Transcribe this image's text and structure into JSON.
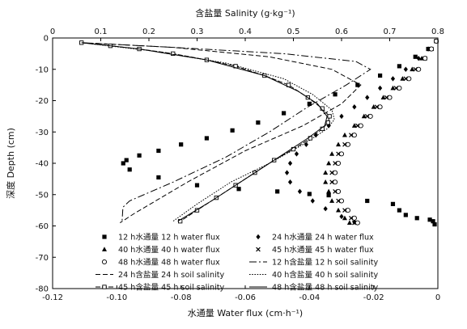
{
  "chart_data": {
    "type": "scatter",
    "x_bottom": {
      "label": "水通量 Water flux (cm·h⁻¹)",
      "range": [
        -0.12,
        0
      ],
      "ticks": [
        "-0.12",
        "-0.10",
        "-0.08",
        "-0.06",
        "-0.04",
        "-0.02",
        "0"
      ],
      "tick_values": [
        -0.12,
        -0.1,
        -0.08,
        -0.06,
        -0.04,
        -0.02,
        0
      ]
    },
    "x_top": {
      "label": "含盐量 Salinity (g·kg⁻¹)",
      "range": [
        0,
        0.8
      ],
      "ticks": [
        "0",
        "0.1",
        "0.2",
        "0.3",
        "0.4",
        "0.5",
        "0.6",
        "0.7",
        "0.8"
      ],
      "tick_values": [
        0,
        0.1,
        0.2,
        0.3,
        0.4,
        0.5,
        0.6,
        0.7,
        0.8
      ]
    },
    "y": {
      "label": "深度 Depth (cm)",
      "range": [
        -80,
        0
      ],
      "ticks": [
        "0",
        "-10",
        "-20",
        "-30",
        "-40",
        "-50",
        "-60",
        "-70",
        "-80"
      ],
      "tick_values": [
        0,
        -10,
        -20,
        -30,
        -40,
        -50,
        -60,
        -70,
        -80
      ]
    },
    "legend_position": "lower-center",
    "series": [
      {
        "name": "12 h水通量 12 h water flux",
        "axis": "bottom",
        "marker": "square",
        "points": [
          [
            -0.0005,
            -1
          ],
          [
            -0.003,
            -3.5
          ],
          [
            -0.007,
            -6
          ],
          [
            -0.012,
            -9
          ],
          [
            -0.018,
            -12
          ],
          [
            -0.025,
            -15
          ],
          [
            -0.032,
            -18
          ],
          [
            -0.04,
            -21
          ],
          [
            -0.048,
            -24
          ],
          [
            -0.056,
            -27
          ],
          [
            -0.064,
            -29.5
          ],
          [
            -0.072,
            -32
          ],
          [
            -0.08,
            -34
          ],
          [
            -0.087,
            -36
          ],
          [
            -0.093,
            -37.5
          ],
          [
            -0.097,
            -39
          ],
          [
            -0.098,
            -40
          ],
          [
            -0.096,
            -42
          ],
          [
            -0.087,
            -44.5
          ],
          [
            -0.075,
            -47
          ],
          [
            -0.062,
            -48.2
          ],
          [
            -0.05,
            -49
          ],
          [
            -0.04,
            -49.8
          ],
          [
            -0.034,
            -50.2
          ],
          [
            -0.022,
            -52
          ],
          [
            -0.014,
            -53
          ],
          [
            -0.012,
            -55
          ],
          [
            -0.01,
            -56.5
          ],
          [
            -0.0065,
            -57.5
          ],
          [
            -0.0025,
            -58
          ],
          [
            -0.0015,
            -58.5
          ],
          [
            -0.001,
            -59.5
          ]
        ]
      },
      {
        "name": "24 h水通量 24 h water flux",
        "axis": "bottom",
        "marker": "diamond",
        "points": [
          [
            -0.0005,
            -1
          ],
          [
            -0.003,
            -3.5
          ],
          [
            -0.006,
            -6.5
          ],
          [
            -0.01,
            -10
          ],
          [
            -0.014,
            -13
          ],
          [
            -0.018,
            -16
          ],
          [
            -0.022,
            -19
          ],
          [
            -0.026,
            -22
          ],
          [
            -0.03,
            -25
          ],
          [
            -0.034,
            -28
          ],
          [
            -0.038,
            -31
          ],
          [
            -0.041,
            -34
          ],
          [
            -0.044,
            -37
          ],
          [
            -0.046,
            -40
          ],
          [
            -0.047,
            -43
          ],
          [
            -0.046,
            -46
          ],
          [
            -0.043,
            -49
          ],
          [
            -0.039,
            -52
          ],
          [
            -0.035,
            -54.5
          ],
          [
            -0.03,
            -57
          ],
          [
            -0.026,
            -58.8
          ]
        ]
      },
      {
        "name": "40 h水通量 40 h water flux",
        "axis": "bottom",
        "marker": "triangle",
        "points": [
          [
            -0.0005,
            -1
          ],
          [
            -0.002,
            -3.5
          ],
          [
            -0.005,
            -6.5
          ],
          [
            -0.008,
            -10
          ],
          [
            -0.011,
            -13
          ],
          [
            -0.014,
            -16
          ],
          [
            -0.017,
            -19
          ],
          [
            -0.02,
            -22
          ],
          [
            -0.023,
            -25
          ],
          [
            -0.026,
            -28
          ],
          [
            -0.029,
            -31
          ],
          [
            -0.031,
            -34
          ],
          [
            -0.033,
            -37
          ],
          [
            -0.034,
            -40
          ],
          [
            -0.035,
            -43
          ],
          [
            -0.035,
            -46
          ],
          [
            -0.034,
            -49
          ],
          [
            -0.033,
            -52
          ],
          [
            -0.031,
            -55
          ],
          [
            -0.029,
            -57.5
          ],
          [
            -0.0275,
            -59
          ]
        ]
      },
      {
        "name": "45 h水通量 45 h water flux",
        "axis": "bottom",
        "marker": "cross",
        "points": [
          [
            -0.0005,
            -1
          ],
          [
            -0.002,
            -3.5
          ],
          [
            -0.004,
            -6.5
          ],
          [
            -0.007,
            -10
          ],
          [
            -0.01,
            -13
          ],
          [
            -0.013,
            -16
          ],
          [
            -0.016,
            -19
          ],
          [
            -0.019,
            -22
          ],
          [
            -0.022,
            -25
          ],
          [
            -0.025,
            -28
          ],
          [
            -0.027,
            -31
          ],
          [
            -0.029,
            -34
          ],
          [
            -0.031,
            -37
          ],
          [
            -0.032,
            -40
          ],
          [
            -0.033,
            -43
          ],
          [
            -0.033,
            -46
          ],
          [
            -0.032,
            -49
          ],
          [
            -0.031,
            -52
          ],
          [
            -0.029,
            -55
          ],
          [
            -0.027,
            -57.5
          ],
          [
            -0.026,
            -59
          ]
        ]
      },
      {
        "name": "48 h水通量 48 h water flux",
        "axis": "bottom",
        "marker": "circle",
        "points": [
          [
            -0.0005,
            -1
          ],
          [
            -0.002,
            -3.5
          ],
          [
            -0.004,
            -6.5
          ],
          [
            -0.006,
            -10
          ],
          [
            -0.009,
            -13
          ],
          [
            -0.012,
            -16
          ],
          [
            -0.015,
            -19
          ],
          [
            -0.018,
            -22
          ],
          [
            -0.021,
            -25
          ],
          [
            -0.024,
            -28
          ],
          [
            -0.026,
            -31
          ],
          [
            -0.028,
            -34
          ],
          [
            -0.03,
            -37
          ],
          [
            -0.031,
            -40
          ],
          [
            -0.032,
            -43
          ],
          [
            -0.032,
            -46
          ],
          [
            -0.031,
            -49
          ],
          [
            -0.03,
            -52
          ],
          [
            -0.028,
            -55
          ],
          [
            -0.026,
            -57.5
          ],
          [
            -0.025,
            -59
          ]
        ]
      },
      {
        "name": "12 h含盐量 12 h soil salinity",
        "axis": "top",
        "dash": "9 3 2 3",
        "marker": "none",
        "points": [
          [
            0.06,
            -1.5
          ],
          [
            0.25,
            -3
          ],
          [
            0.48,
            -5
          ],
          [
            0.63,
            -7.5
          ],
          [
            0.66,
            -10
          ],
          [
            0.61,
            -15
          ],
          [
            0.53,
            -22
          ],
          [
            0.45,
            -30
          ],
          [
            0.36,
            -38
          ],
          [
            0.25,
            -46
          ],
          [
            0.16,
            -52
          ],
          [
            0.146,
            -54
          ],
          [
            0.144,
            -59
          ]
        ]
      },
      {
        "name": "24 h含盐量 24 h soil salinity",
        "axis": "top",
        "dash": "6 3",
        "marker": "none",
        "points": [
          [
            0.06,
            -1.5
          ],
          [
            0.25,
            -3
          ],
          [
            0.45,
            -6
          ],
          [
            0.58,
            -10
          ],
          [
            0.64,
            -15
          ],
          [
            0.6,
            -21
          ],
          [
            0.52,
            -28
          ],
          [
            0.4,
            -36
          ],
          [
            0.28,
            -46
          ],
          [
            0.17,
            -56
          ],
          [
            0.14,
            -59
          ]
        ]
      },
      {
        "name": "40 h含盐量 40 h soil salinity",
        "axis": "top",
        "dash": "1.6 1.6",
        "marker": "none",
        "points": [
          [
            0.06,
            -1.5
          ],
          [
            0.2,
            -4
          ],
          [
            0.36,
            -8
          ],
          [
            0.48,
            -13
          ],
          [
            0.54,
            -18
          ],
          [
            0.58,
            -23
          ],
          [
            0.585,
            -26
          ],
          [
            0.57,
            -29
          ],
          [
            0.52,
            -34
          ],
          [
            0.45,
            -40
          ],
          [
            0.37,
            -46
          ],
          [
            0.3,
            -53
          ],
          [
            0.25,
            -58.5
          ]
        ]
      },
      {
        "name": "45 h含盐量 45 h soil salinity",
        "axis": "top",
        "dash": "6 2",
        "marker": "square-open",
        "points": [
          [
            0.06,
            -1.5
          ],
          [
            0.12,
            -2.5
          ],
          [
            0.18,
            -3.5
          ],
          [
            0.25,
            -5
          ],
          [
            0.32,
            -7
          ],
          [
            0.38,
            -9
          ],
          [
            0.44,
            -12
          ],
          [
            0.49,
            -15
          ],
          [
            0.53,
            -19
          ],
          [
            0.56,
            -22.5
          ],
          [
            0.575,
            -25
          ],
          [
            0.572,
            -27
          ],
          [
            0.56,
            -29
          ],
          [
            0.535,
            -32
          ],
          [
            0.5,
            -35.5
          ],
          [
            0.46,
            -39
          ],
          [
            0.42,
            -43
          ],
          [
            0.38,
            -47
          ],
          [
            0.34,
            -51
          ],
          [
            0.3,
            -55
          ],
          [
            0.265,
            -58.5
          ]
        ]
      },
      {
        "name": "48 h含盐量 48 h soil salinity",
        "axis": "top",
        "dash": "",
        "marker": "none",
        "points": [
          [
            0.06,
            -1.5
          ],
          [
            0.18,
            -3.5
          ],
          [
            0.32,
            -7
          ],
          [
            0.44,
            -12
          ],
          [
            0.51,
            -17
          ],
          [
            0.55,
            -21
          ],
          [
            0.57,
            -25
          ],
          [
            0.565,
            -28
          ],
          [
            0.53,
            -32
          ],
          [
            0.47,
            -38
          ],
          [
            0.4,
            -45
          ],
          [
            0.33,
            -52
          ],
          [
            0.26,
            -58.5
          ]
        ]
      }
    ]
  }
}
